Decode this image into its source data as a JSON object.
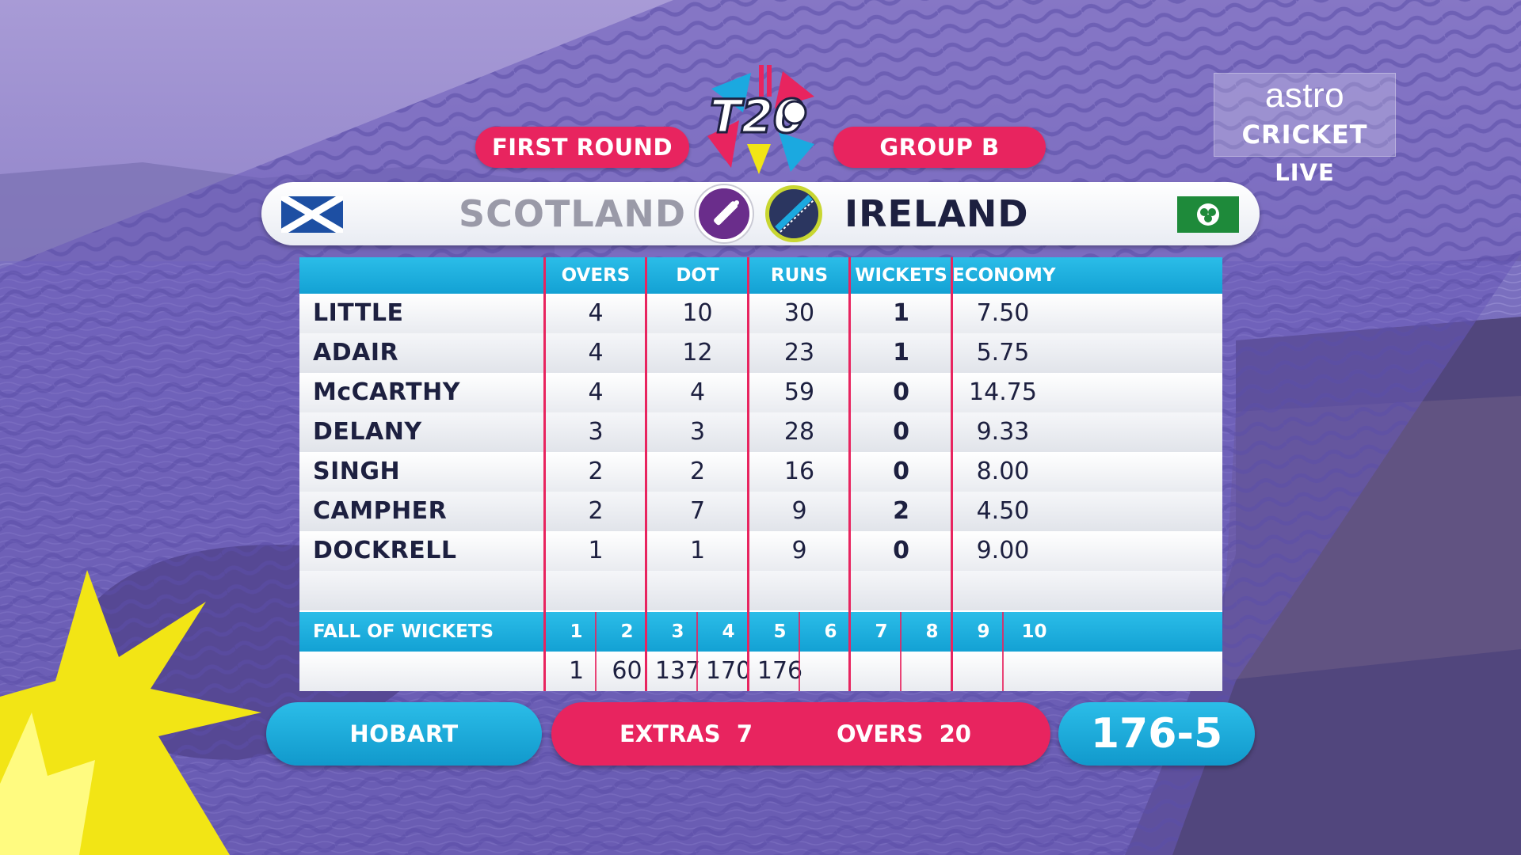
{
  "header": {
    "round_label": "FIRST ROUND",
    "group_label": "GROUP B",
    "logo": "t20-world-cup-logo"
  },
  "broadcaster": {
    "line1": "astro",
    "line2": "CRICKET",
    "line3": "LIVE"
  },
  "teams": {
    "batting_team": "SCOTLAND",
    "bowling_team": "IRELAND",
    "batting_icon": "cricket-bat-icon",
    "bowling_icon": "cricket-ball-icon"
  },
  "table": {
    "columns": [
      "OVERS",
      "DOT BALLS",
      "RUNS",
      "WICKETS",
      "ECONOMY"
    ],
    "rows": [
      {
        "name": "LITTLE",
        "overs": "4",
        "dots": "10",
        "runs": "30",
        "wickets": "1",
        "economy": "7.50"
      },
      {
        "name": "ADAIR",
        "overs": "4",
        "dots": "12",
        "runs": "23",
        "wickets": "1",
        "economy": "5.75"
      },
      {
        "name": "McCARTHY",
        "overs": "4",
        "dots": "4",
        "runs": "59",
        "wickets": "0",
        "economy": "14.75"
      },
      {
        "name": "DELANY",
        "overs": "3",
        "dots": "3",
        "runs": "28",
        "wickets": "0",
        "economy": "9.33"
      },
      {
        "name": "SINGH",
        "overs": "2",
        "dots": "2",
        "runs": "16",
        "wickets": "0",
        "economy": "8.00"
      },
      {
        "name": "CAMPHER",
        "overs": "2",
        "dots": "7",
        "runs": "9",
        "wickets": "2",
        "economy": "4.50"
      },
      {
        "name": "DOCKRELL",
        "overs": "1",
        "dots": "1",
        "runs": "9",
        "wickets": "0",
        "economy": "9.00"
      },
      {
        "name": "",
        "overs": "",
        "dots": "",
        "runs": "",
        "wickets": "",
        "economy": ""
      }
    ],
    "fall_of_wickets_label": "FALL OF WICKETS",
    "fow_numbers": [
      "1",
      "2",
      "3",
      "4",
      "5",
      "6",
      "7",
      "8",
      "9",
      "10"
    ],
    "fow_values": [
      "1",
      "60",
      "137",
      "170",
      "176",
      "",
      "",
      "",
      "",
      ""
    ]
  },
  "footer": {
    "venue": "HOBART",
    "extras_label": "EXTRAS",
    "extras_value": "7",
    "overs_label": "OVERS",
    "overs_value": "20",
    "total": "176-5"
  },
  "colors": {
    "pink": "#e8245f",
    "cyan": "#13a1d4",
    "navy": "#1d2040",
    "purple_bg": "#6f63b3",
    "yellow_burst": "#f2e515"
  }
}
